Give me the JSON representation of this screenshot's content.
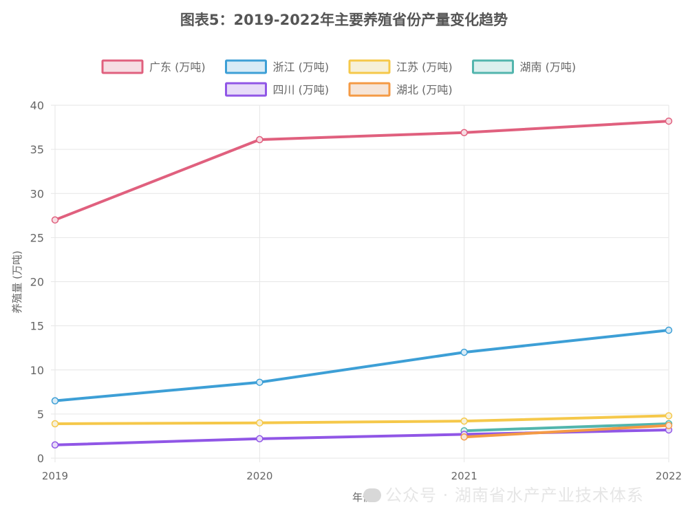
{
  "chart_data": {
    "type": "line",
    "title": "图表5：2019-2022年主要养殖省份产量变化趋势",
    "xlabel": "年份",
    "ylabel": "养殖量 (万吨)",
    "categories": [
      "2019",
      "2020",
      "2021",
      "2022"
    ],
    "ylim": [
      0,
      40
    ],
    "yticks": [
      0,
      5,
      10,
      15,
      20,
      25,
      30,
      35,
      40
    ],
    "grid": true,
    "legend_position": "top",
    "series": [
      {
        "name": "广东 (万吨)",
        "color": "#e0607e",
        "fill": "#f6dde3",
        "values": [
          27.0,
          36.1,
          36.9,
          38.2
        ]
      },
      {
        "name": "浙江 (万吨)",
        "color": "#3d9fd6",
        "fill": "#d8ebf6",
        "values": [
          6.5,
          8.6,
          12.0,
          14.5
        ]
      },
      {
        "name": "江苏 (万吨)",
        "color": "#f5c84a",
        "fill": "#f6f0d8",
        "values": [
          3.9,
          4.0,
          4.2,
          4.8
        ]
      },
      {
        "name": "湖南 (万吨)",
        "color": "#52b5ad",
        "fill": "#dcf0ee",
        "values": [
          null,
          null,
          3.1,
          3.9
        ]
      },
      {
        "name": "四川 (万吨)",
        "color": "#9056e6",
        "fill": "#e7dcf8",
        "values": [
          1.5,
          2.2,
          2.7,
          3.2
        ]
      },
      {
        "name": "湖北 (万吨)",
        "color": "#f49a45",
        "fill": "#f6e5d8",
        "values": [
          null,
          null,
          2.4,
          3.7
        ]
      }
    ]
  },
  "watermark": "公众号 · 湖南省水产产业技术体系"
}
